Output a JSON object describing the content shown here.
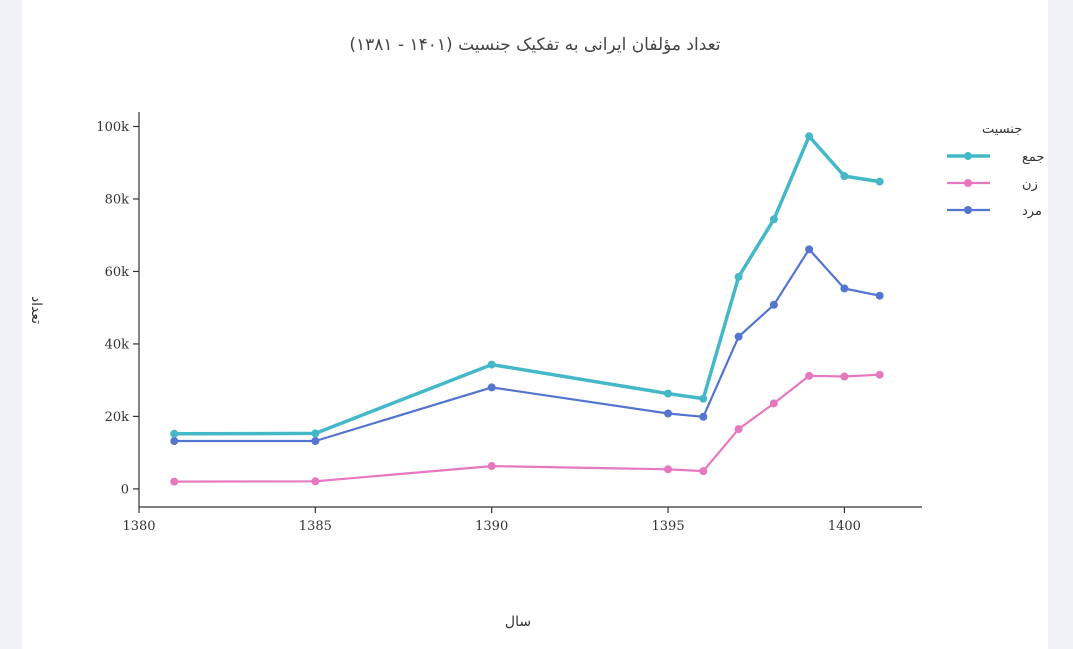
{
  "chart_data": {
    "type": "line",
    "title": "تعداد مؤلفان ایرانی به تفکیک جنسیت (۱۴۰۱ - ۱۳۸۱)",
    "xlabel": "سال",
    "ylabel": "تعداد",
    "xlim": [
      1380,
      1402.2
    ],
    "ylim": [
      -5000,
      104000
    ],
    "x_ticks": [
      1380,
      1385,
      1390,
      1395,
      1400
    ],
    "y_ticks": [
      {
        "value": 0,
        "label": "0"
      },
      {
        "value": 20000,
        "label": "20k"
      },
      {
        "value": 40000,
        "label": "40k"
      },
      {
        "value": 60000,
        "label": "60k"
      },
      {
        "value": 80000,
        "label": "80k"
      },
      {
        "value": 100000,
        "label": "100k"
      }
    ],
    "grid": false,
    "legend": {
      "title": "جنسیت",
      "placement": "top-right"
    },
    "x": [
      1381,
      1385,
      1390,
      1395,
      1396,
      1397,
      1398,
      1399,
      1400,
      1401
    ],
    "series": [
      {
        "name": "جمع",
        "color": "#45b8c8",
        "emphasized": true,
        "values": [
          15200,
          15300,
          34300,
          26300,
          24900,
          58500,
          74400,
          97300,
          86300,
          84800
        ]
      },
      {
        "name": "زن",
        "color": "#e678c0",
        "values": [
          2000,
          2100,
          6300,
          5400,
          4900,
          16500,
          23600,
          31200,
          31000,
          31500
        ]
      },
      {
        "name": "مرد",
        "color": "#5475cf",
        "values": [
          13200,
          13200,
          28000,
          20800,
          19900,
          42000,
          50800,
          66100,
          55300,
          53300
        ]
      }
    ]
  }
}
